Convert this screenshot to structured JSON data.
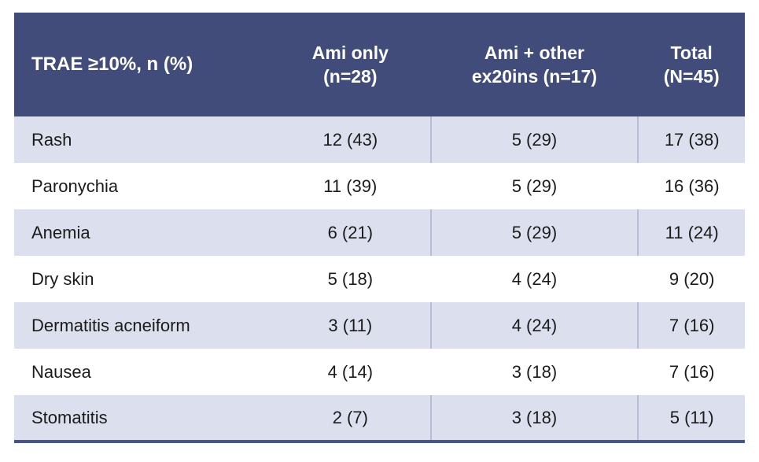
{
  "colors": {
    "header_bg": "#414c7a",
    "header_text": "#ffffff",
    "row_shaded": "#dcdfed",
    "row_white": "#ffffff",
    "separator": "#b7bdd6",
    "bottom_border": "#47548a",
    "body_text": "#1b1b1b"
  },
  "table": {
    "header": {
      "col1": "TRAE ≥10%, n (%)",
      "col2_line1": "Ami only",
      "col2_line2": "(n=28)",
      "col3_line1": "Ami + other",
      "col3_line2": "ex20ins (n=17)",
      "col4_line1": "Total",
      "col4_line2": "(N=45)"
    },
    "rows": [
      {
        "label": "Rash",
        "ami_only": "12 (43)",
        "ami_other": "5 (29)",
        "total": "17 (38)"
      },
      {
        "label": "Paronychia",
        "ami_only": "11 (39)",
        "ami_other": "5 (29)",
        "total": "16 (36)"
      },
      {
        "label": "Anemia",
        "ami_only": "6 (21)",
        "ami_other": "5 (29)",
        "total": "11 (24)"
      },
      {
        "label": "Dry skin",
        "ami_only": "5 (18)",
        "ami_other": "4 (24)",
        "total": "9 (20)"
      },
      {
        "label": "Dermatitis acneiform",
        "ami_only": "3 (11)",
        "ami_other": "4 (24)",
        "total": "7 (16)"
      },
      {
        "label": "Nausea",
        "ami_only": "4 (14)",
        "ami_other": "3 (18)",
        "total": "7 (16)"
      },
      {
        "label": "Stomatitis",
        "ami_only": "2 (7)",
        "ami_other": "3 (18)",
        "total": "5 (11)"
      }
    ]
  },
  "chart_data": {
    "type": "table",
    "title": "TRAE ≥10%, n (%)",
    "columns": [
      "TRAE ≥10%, n (%)",
      "Ami only (n=28)",
      "Ami + other ex20ins (n=17)",
      "Total (N=45)"
    ],
    "rows": [
      [
        "Rash",
        "12 (43)",
        "5 (29)",
        "17 (38)"
      ],
      [
        "Paronychia",
        "11 (39)",
        "5 (29)",
        "16 (36)"
      ],
      [
        "Anemia",
        "6 (21)",
        "5 (29)",
        "11 (24)"
      ],
      [
        "Dry skin",
        "5 (18)",
        "4 (24)",
        "9 (20)"
      ],
      [
        "Dermatitis acneiform",
        "3 (11)",
        "4 (24)",
        "7 (16)"
      ],
      [
        "Nausea",
        "4 (14)",
        "3 (18)",
        "7 (16)"
      ],
      [
        "Stomatitis",
        "2 (7)",
        "3 (18)",
        "5 (11)"
      ]
    ]
  }
}
